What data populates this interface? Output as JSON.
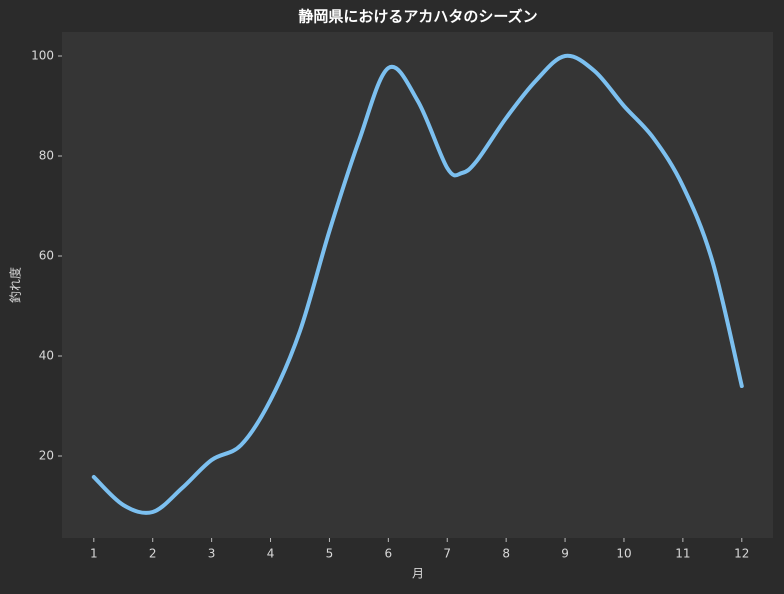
{
  "chart_data": {
    "type": "line",
    "title": "静岡県におけるアカハタのシーズン",
    "x_label": "月",
    "y_label": "釣れ度",
    "x": [
      1,
      1.5,
      2,
      2.5,
      3,
      3.5,
      4,
      4.5,
      5,
      5.5,
      6,
      6.5,
      7,
      7.25,
      7.5,
      8,
      8.5,
      9,
      9.5,
      10,
      10.5,
      11,
      11.5,
      12
    ],
    "series": [
      {
        "name": "釣れ度",
        "color": "#7cc0f0",
        "values": [
          15.8,
          10.2,
          8.8,
          13.6,
          19.2,
          22.2,
          31.2,
          45,
          65,
          83,
          97.6,
          91,
          77.6,
          76.6,
          79,
          87.6,
          95,
          100,
          97,
          90,
          83.6,
          74,
          59,
          34
        ]
      }
    ],
    "xlim": [
      0.46,
      12.53
    ],
    "ylim": [
      3.6,
      104.8
    ],
    "xticks": [
      1,
      2,
      3,
      4,
      5,
      6,
      7,
      8,
      9,
      10,
      11,
      12
    ],
    "yticks": [
      20,
      40,
      60,
      80,
      100
    ],
    "grid": false
  }
}
